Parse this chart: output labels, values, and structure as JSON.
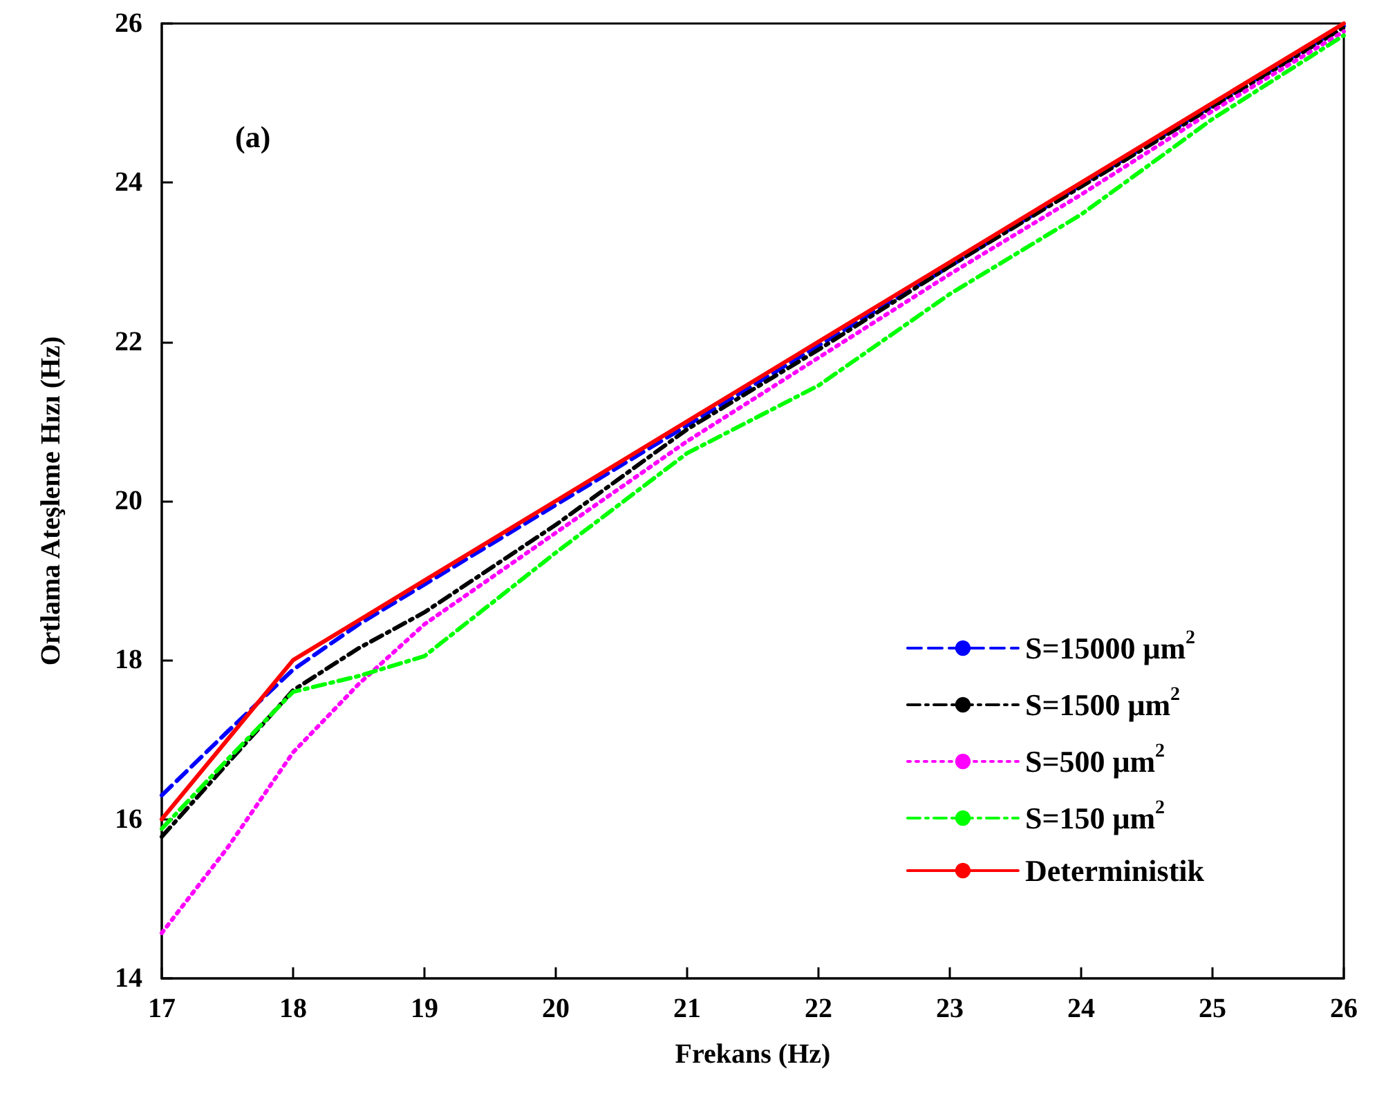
{
  "chart_data": {
    "type": "line",
    "xlabel": "Frekans (Hz)",
    "ylabel": "Ortlama Ateşleme Hızı (Hz)",
    "annotations": [
      "(a)"
    ],
    "xlim": [
      17,
      26
    ],
    "xticks": [
      17,
      18,
      19,
      20,
      21,
      22,
      23,
      24,
      25,
      26
    ],
    "ylim": [
      14,
      26
    ],
    "yticks": [
      14,
      16,
      18,
      20,
      22,
      24,
      26
    ],
    "grid": false,
    "legend": "bottom right",
    "marker": "none",
    "series": [
      {
        "name": "S=15000 μm$^{2}$",
        "color": "#0000ff",
        "line_style": "dashed",
        "x": [
          17,
          17.5,
          18,
          18.5,
          19,
          20,
          21,
          22,
          23,
          24,
          25,
          26
        ],
        "values": [
          16.3,
          17.1,
          17.88,
          18.45,
          18.95,
          19.95,
          20.95,
          21.95,
          22.95,
          23.97,
          24.97,
          25.97
        ]
      },
      {
        "name": "S=1500 μm$^{2}$",
        "color": "#000000",
        "line_style": "dashdot",
        "x": [
          17,
          17.5,
          18,
          18.5,
          19,
          20,
          21,
          22,
          23,
          24,
          25,
          26
        ],
        "values": [
          15.78,
          16.7,
          17.62,
          18.15,
          18.6,
          19.7,
          20.9,
          21.9,
          22.95,
          23.95,
          24.95,
          25.95
        ]
      },
      {
        "name": "S=500 μm$^{2}$",
        "color": "#ff00ff",
        "line_style": "dotted",
        "x": [
          17,
          17.5,
          18,
          18.5,
          19,
          20,
          21,
          22,
          23,
          24,
          25,
          26
        ],
        "values": [
          14.57,
          15.64,
          16.84,
          17.7,
          18.45,
          19.6,
          20.75,
          21.8,
          22.85,
          23.85,
          24.9,
          25.9
        ]
      },
      {
        "name": "S=150 μm$^{2}$",
        "color": "#00ff00",
        "line_style": "dashdot",
        "x": [
          17,
          17.5,
          18,
          18.5,
          19,
          20,
          21,
          22,
          23,
          24,
          25,
          26
        ],
        "values": [
          15.88,
          16.75,
          17.6,
          17.8,
          18.05,
          19.35,
          20.6,
          21.45,
          22.6,
          23.6,
          24.8,
          25.85
        ]
      },
      {
        "name": "Deterministik",
        "color": "#ff0000",
        "line_style": "solid",
        "x": [
          17,
          18,
          19,
          20,
          21,
          22,
          23,
          24,
          25,
          26
        ],
        "values": [
          16.0,
          18.0,
          19.0,
          20.0,
          21.0,
          22.0,
          23.0,
          24.0,
          25.0,
          26.0
        ]
      }
    ]
  }
}
